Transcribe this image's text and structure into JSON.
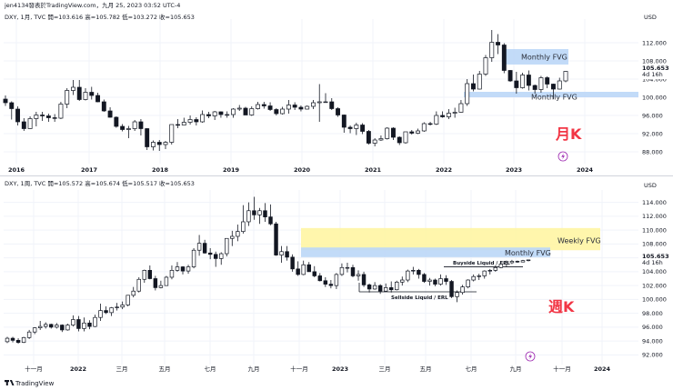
{
  "footer": {
    "brand": "TradingView",
    "logo_icon": "tradingview-logo-icon"
  },
  "bolt_icon": "lightning-bolt-icon",
  "colors": {
    "up": "#ffffff",
    "down": "#131722",
    "fvg_blue": "#bbd7f7",
    "fvg_yellow": "#fff59d",
    "label_red": "#f23645",
    "grid": "#f0f3fa"
  },
  "chart_data": [
    {
      "type": "candlestick",
      "title": "jen4134發表於TradingView.com，九月 25, 2023 03:52 UTC-4",
      "subtitle": "DXY, 1月, TVC  開=103.616  高=105.782  低=103.272  收=105.653",
      "currency": "USD",
      "big_label": "月K",
      "x_labels": [
        "2016",
        "2017",
        "2018",
        "2019",
        "2020",
        "2021",
        "2022",
        "2023",
        "2024"
      ],
      "y_ticks": [
        88,
        92,
        96,
        100,
        104,
        108,
        112
      ],
      "ylim": [
        86,
        116
      ],
      "last_price": "105.653",
      "countdown": "4d 16h",
      "zones": [
        {
          "label": "Monthly FVG",
          "low": 107.2,
          "high": 110.6,
          "color": "blue"
        },
        {
          "label": "Monthly FVG",
          "low": 100.0,
          "high": 101.2,
          "color": "blue"
        }
      ],
      "candles": [
        [
          99.6,
          100.4,
          98.1,
          98.8
        ],
        [
          98.8,
          99.1,
          95.1,
          97.5
        ],
        [
          97.4,
          98.0,
          93.8,
          94.6
        ],
        [
          94.6,
          95.4,
          92.6,
          93.1
        ],
        [
          93.1,
          95.8,
          93.0,
          95.3
        ],
        [
          95.3,
          96.8,
          93.6,
          96.1
        ],
        [
          96.1,
          96.8,
          94.8,
          95.9
        ],
        [
          95.9,
          96.4,
          94.6,
          95.5
        ],
        [
          95.5,
          96.3,
          94.6,
          95.4
        ],
        [
          95.4,
          99.0,
          95.2,
          98.5
        ],
        [
          98.5,
          102.0,
          97.6,
          101.5
        ],
        [
          101.5,
          103.8,
          100.5,
          102.2
        ],
        [
          102.2,
          103.8,
          99.2,
          99.5
        ],
        [
          99.5,
          102.0,
          99.3,
          101.1
        ],
        [
          101.1,
          102.3,
          99.5,
          100.4
        ],
        [
          100.4,
          101.0,
          98.9,
          99.0
        ],
        [
          99.0,
          99.5,
          96.8,
          97.0
        ],
        [
          97.0,
          97.8,
          95.5,
          95.6
        ],
        [
          95.6,
          95.8,
          93.3,
          93.6
        ],
        [
          93.6,
          94.1,
          92.5,
          92.9
        ],
        [
          92.9,
          93.7,
          91.0,
          93.1
        ],
        [
          93.1,
          95.0,
          92.6,
          94.6
        ],
        [
          94.6,
          95.2,
          91.6,
          93.1
        ],
        [
          93.1,
          93.2,
          88.4,
          89.1
        ],
        [
          89.1,
          90.5,
          88.3,
          90.1
        ],
        [
          90.1,
          90.6,
          88.2,
          89.6
        ],
        [
          89.6,
          90.4,
          88.6,
          90.1
        ],
        [
          90.1,
          94.0,
          89.6,
          94.0
        ],
        [
          94.0,
          95.2,
          93.2,
          93.9
        ],
        [
          93.9,
          95.5,
          93.9,
          94.5
        ],
        [
          94.5,
          96.0,
          94.0,
          95.1
        ],
        [
          95.1,
          95.6,
          93.8,
          94.6
        ],
        [
          94.6,
          97.1,
          94.4,
          96.2
        ],
        [
          96.2,
          96.8,
          95.4,
          95.9
        ],
        [
          95.9,
          97.0,
          95.0,
          96.8
        ],
        [
          96.8,
          96.9,
          95.5,
          96.2
        ],
        [
          96.2,
          96.9,
          95.5,
          96.2
        ],
        [
          96.2,
          97.6,
          95.5,
          97.4
        ],
        [
          97.4,
          98.3,
          97.0,
          97.6
        ],
        [
          97.6,
          97.9,
          96.3,
          96.1
        ],
        [
          96.1,
          98.0,
          95.9,
          97.5
        ],
        [
          97.5,
          99.0,
          97.3,
          98.4
        ],
        [
          98.4,
          99.0,
          97.5,
          98.1
        ],
        [
          98.1,
          98.9,
          97.0,
          97.3
        ],
        [
          97.3,
          97.6,
          96.0,
          96.4
        ],
        [
          96.4,
          97.9,
          96.2,
          97.4
        ],
        [
          97.4,
          99.4,
          96.4,
          98.3
        ],
        [
          98.3,
          98.9,
          97.2,
          97.8
        ],
        [
          97.8,
          98.2,
          96.9,
          97.4
        ],
        [
          97.4,
          98.2,
          97.3,
          98.0
        ],
        [
          98.0,
          99.4,
          97.4,
          98.8
        ],
        [
          98.8,
          102.9,
          94.6,
          99.0
        ],
        [
          99.0,
          100.9,
          98.9,
          99.0
        ],
        [
          99.0,
          99.8,
          97.2,
          97.5
        ],
        [
          97.5,
          97.8,
          95.7,
          96.1
        ],
        [
          96.1,
          96.2,
          92.2,
          93.4
        ],
        [
          93.4,
          93.8,
          92.1,
          93.1
        ],
        [
          93.1,
          94.4,
          91.7,
          93.9
        ],
        [
          93.9,
          94.3,
          91.9,
          92.5
        ],
        [
          92.5,
          92.8,
          89.6,
          89.9
        ],
        [
          89.9,
          91.0,
          89.2,
          90.6
        ],
        [
          90.6,
          91.6,
          90.4,
          90.9
        ],
        [
          90.9,
          93.4,
          90.7,
          93.2
        ],
        [
          93.2,
          93.4,
          90.6,
          91.2
        ],
        [
          91.2,
          91.4,
          89.5,
          90.0
        ],
        [
          90.0,
          92.4,
          89.8,
          92.4
        ],
        [
          92.4,
          92.8,
          91.8,
          92.1
        ],
        [
          92.1,
          93.1,
          91.9,
          92.6
        ],
        [
          92.6,
          94.5,
          92.4,
          94.2
        ],
        [
          94.2,
          94.6,
          93.8,
          94.1
        ],
        [
          94.1,
          96.9,
          93.9,
          96.0
        ],
        [
          96.0,
          96.9,
          95.5,
          95.7
        ],
        [
          95.7,
          97.4,
          95.2,
          96.5
        ],
        [
          96.5,
          97.7,
          95.5,
          96.7
        ],
        [
          96.7,
          99.4,
          96.6,
          98.6
        ],
        [
          98.6,
          104.0,
          98.1,
          103.0
        ],
        [
          103.0,
          105.0,
          101.3,
          101.8
        ],
        [
          101.8,
          105.8,
          101.7,
          105.1
        ],
        [
          105.1,
          109.3,
          104.7,
          108.7
        ],
        [
          108.7,
          114.8,
          107.8,
          112.1
        ],
        [
          112.1,
          113.9,
          109.5,
          111.5
        ],
        [
          111.5,
          111.9,
          105.3,
          105.9
        ],
        [
          105.9,
          106.0,
          103.4,
          103.6
        ],
        [
          103.6,
          105.6,
          100.8,
          102.1
        ],
        [
          102.1,
          105.4,
          101.9,
          104.9
        ],
        [
          104.9,
          105.9,
          101.5,
          102.6
        ],
        [
          102.6,
          102.8,
          100.8,
          101.7
        ],
        [
          101.7,
          104.7,
          101.0,
          104.3
        ],
        [
          104.3,
          104.6,
          102.0,
          102.9
        ],
        [
          102.9,
          103.0,
          99.6,
          101.8
        ],
        [
          101.8,
          104.3,
          101.7,
          103.6
        ],
        [
          103.6,
          105.8,
          103.3,
          105.7
        ]
      ]
    },
    {
      "type": "candlestick",
      "subtitle": "DXY, 1周, TVC  開=105.572  高=105.674  低=105.517  收=105.653",
      "currency": "USD",
      "big_label": "週K",
      "x_labels": [
        "十一月",
        "2022",
        "三月",
        "五月",
        "七月",
        "九月",
        "十一月",
        "2023",
        "三月",
        "五月",
        "七月",
        "九月",
        "十一月",
        "2024"
      ],
      "y_ticks": [
        92,
        94,
        96,
        98,
        100,
        102,
        104,
        106,
        108,
        110,
        112,
        114
      ],
      "ylim": [
        91,
        115
      ],
      "last_price": "105.653",
      "countdown": "4d 16h",
      "zones": [
        {
          "label": "Weekly FVG",
          "low": 107.1,
          "high": 110.3,
          "color": "yellow"
        },
        {
          "label": "Monthly FVG",
          "low": 106.1,
          "high": 107.5,
          "color": "blue"
        }
      ],
      "annotations": [
        {
          "label": "Buyside Liquid / ERL",
          "level": 104.7
        },
        {
          "label": "Sellside Liquid / ERL",
          "level": 101.1
        }
      ],
      "candles": [
        [
          93.9,
          94.6,
          93.7,
          94.4
        ],
        [
          94.4,
          94.6,
          93.8,
          94.1
        ],
        [
          94.1,
          94.4,
          93.6,
          93.8
        ],
        [
          93.8,
          94.6,
          93.7,
          94.5
        ],
        [
          94.5,
          95.6,
          94.3,
          95.3
        ],
        [
          95.3,
          96.0,
          95.0,
          95.9
        ],
        [
          95.9,
          96.9,
          95.6,
          96.1
        ],
        [
          96.1,
          96.7,
          95.8,
          96.4
        ],
        [
          96.4,
          96.5,
          95.8,
          96.0
        ],
        [
          96.0,
          96.6,
          95.8,
          96.3
        ],
        [
          96.3,
          96.4,
          95.3,
          95.6
        ],
        [
          95.6,
          96.5,
          95.5,
          96.3
        ],
        [
          96.3,
          97.7,
          96.1,
          97.1
        ],
        [
          97.1,
          97.6,
          95.4,
          95.8
        ],
        [
          95.8,
          97.4,
          95.4,
          96.6
        ],
        [
          96.6,
          97.0,
          95.7,
          96.1
        ],
        [
          96.1,
          97.8,
          96.0,
          97.4
        ],
        [
          97.4,
          99.4,
          96.9,
          98.4
        ],
        [
          98.4,
          99.0,
          97.9,
          98.1
        ],
        [
          98.1,
          98.9,
          97.6,
          98.8
        ],
        [
          98.8,
          99.5,
          98.4,
          98.9
        ],
        [
          98.9,
          99.7,
          98.6,
          99.2
        ],
        [
          99.2,
          100.6,
          99.0,
          100.6
        ],
        [
          100.6,
          101.8,
          100.3,
          101.2
        ],
        [
          101.2,
          103.2,
          101.0,
          102.9
        ],
        [
          102.9,
          104.3,
          102.4,
          104.2
        ],
        [
          104.2,
          104.9,
          102.9,
          103.0
        ],
        [
          103.0,
          103.4,
          101.3,
          101.7
        ],
        [
          101.7,
          102.7,
          101.6,
          102.0
        ],
        [
          102.0,
          103.4,
          102.0,
          103.2
        ],
        [
          103.2,
          104.9,
          102.9,
          104.2
        ],
        [
          104.2,
          105.4,
          104.0,
          104.7
        ],
        [
          104.7,
          104.8,
          103.6,
          104.1
        ],
        [
          104.1,
          105.0,
          103.7,
          104.7
        ],
        [
          104.7,
          107.4,
          104.5,
          107.1
        ],
        [
          107.1,
          109.3,
          106.3,
          108.1
        ],
        [
          108.1,
          108.6,
          106.6,
          106.7
        ],
        [
          106.7,
          107.4,
          105.8,
          106.5
        ],
        [
          106.5,
          106.9,
          104.7,
          105.9
        ],
        [
          105.9,
          106.8,
          105.0,
          106.6
        ],
        [
          106.6,
          108.8,
          106.2,
          108.8
        ],
        [
          108.8,
          109.9,
          107.7,
          109.1
        ],
        [
          109.1,
          110.8,
          108.4,
          109.8
        ],
        [
          109.8,
          113.6,
          109.5,
          111.2
        ],
        [
          111.2,
          114.0,
          110.6,
          112.8
        ],
        [
          112.8,
          114.8,
          111.5,
          112.2
        ],
        [
          112.2,
          113.2,
          110.9,
          112.8
        ],
        [
          112.8,
          113.9,
          111.2,
          111.9
        ],
        [
          111.9,
          113.7,
          110.7,
          110.9
        ],
        [
          110.9,
          111.2,
          106.3,
          106.4
        ],
        [
          106.4,
          107.7,
          105.3,
          106.9
        ],
        [
          106.9,
          107.7,
          105.6,
          106.1
        ],
        [
          106.1,
          106.5,
          104.0,
          104.4
        ],
        [
          104.4,
          105.5,
          103.4,
          103.6
        ],
        [
          103.6,
          105.6,
          103.5,
          105.0
        ],
        [
          105.0,
          105.4,
          104.0,
          104.0
        ],
        [
          104.0,
          104.8,
          103.2,
          103.4
        ],
        [
          103.4,
          103.8,
          102.6,
          102.7
        ],
        [
          102.7,
          103.2,
          101.8,
          102.2
        ],
        [
          102.2,
          102.8,
          101.6,
          102.0
        ],
        [
          102.0,
          103.8,
          101.5,
          103.6
        ],
        [
          103.6,
          105.2,
          103.4,
          104.6
        ],
        [
          104.6,
          105.3,
          103.9,
          104.6
        ],
        [
          104.6,
          105.0,
          103.2,
          103.4
        ],
        [
          103.4,
          104.2,
          102.7,
          103.6
        ],
        [
          103.6,
          104.0,
          101.8,
          102.1
        ],
        [
          102.1,
          102.3,
          101.0,
          101.5
        ],
        [
          101.5,
          102.5,
          101.4,
          102.0
        ],
        [
          102.0,
          102.2,
          100.8,
          101.2
        ],
        [
          101.2,
          102.3,
          101.1,
          101.7
        ],
        [
          101.7,
          102.6,
          101.0,
          101.4
        ],
        [
          101.4,
          102.7,
          101.3,
          102.5
        ],
        [
          102.5,
          103.3,
          102.0,
          102.8
        ],
        [
          102.8,
          104.3,
          102.5,
          104.1
        ],
        [
          104.1,
          104.7,
          103.6,
          104.2
        ],
        [
          104.2,
          104.4,
          103.0,
          103.6
        ],
        [
          103.6,
          103.8,
          102.4,
          102.6
        ],
        [
          102.6,
          103.1,
          102.0,
          102.8
        ],
        [
          102.8,
          103.0,
          101.9,
          102.2
        ],
        [
          102.2,
          103.6,
          102.0,
          103.0
        ],
        [
          103.0,
          103.5,
          102.1,
          102.6
        ],
        [
          102.6,
          102.8,
          100.2,
          100.4
        ],
        [
          100.4,
          101.3,
          99.6,
          101.0
        ],
        [
          101.0,
          102.1,
          100.7,
          101.8
        ],
        [
          101.8,
          102.9,
          101.6,
          102.8
        ],
        [
          102.8,
          103.6,
          102.6,
          103.3
        ],
        [
          103.3,
          103.7,
          102.8,
          103.4
        ],
        [
          103.4,
          104.2,
          103.0,
          104.1
        ],
        [
          104.1,
          104.4,
          103.6,
          104.2
        ],
        [
          104.2,
          104.9,
          104.0,
          104.6
        ],
        [
          104.6,
          105.2,
          104.5,
          105.1
        ],
        [
          105.1,
          105.6,
          104.7,
          105.3
        ],
        [
          105.3,
          105.7,
          105.1,
          105.5
        ],
        [
          105.5,
          105.6,
          105.3,
          105.4
        ],
        [
          105.4,
          105.7,
          105.4,
          105.6
        ],
        [
          105.6,
          105.7,
          105.5,
          105.7
        ]
      ]
    }
  ]
}
